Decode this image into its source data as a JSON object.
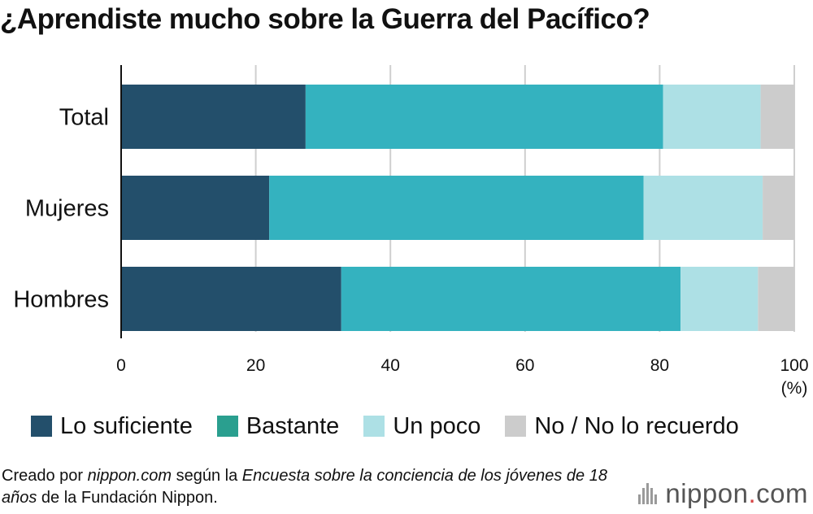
{
  "title": "¿Aprendiste mucho sobre la Guerra del Pacífico?",
  "chart_data": {
    "type": "bar",
    "orientation": "horizontal",
    "stacked": true,
    "title": "¿Aprendiste mucho sobre la Guerra del Pacífico?",
    "categories": [
      "Total",
      "Mujeres",
      "Hombres"
    ],
    "series": [
      {
        "name": "Lo suficiente",
        "color": "#234f6b",
        "values": [
          27.4,
          22.0,
          32.7
        ]
      },
      {
        "name": "Bastante",
        "color": "#34b2bf",
        "values": [
          53.1,
          55.6,
          50.4
        ]
      },
      {
        "name": "Un poco",
        "color": "#ade0e5",
        "values": [
          14.5,
          17.7,
          11.5
        ]
      },
      {
        "name": "No / No lo recuerdo",
        "color": "#cccccc",
        "values": [
          5.0,
          4.7,
          5.4
        ]
      }
    ],
    "xlim": [
      0,
      100
    ],
    "xticks": [
      0,
      20,
      40,
      60,
      80,
      100
    ],
    "xlabel": "(%)",
    "grid": true
  },
  "legend": [
    {
      "label": "Lo suficiente",
      "color": "#234f6b"
    },
    {
      "label": "Bastante",
      "color": "#2a9f8f"
    },
    {
      "label": "Un poco",
      "color": "#ade0e5"
    },
    {
      "label": "No / No lo recuerdo",
      "color": "#cccccc"
    }
  ],
  "footer": {
    "p1": "Creado por ",
    "p2": "nippon.com",
    "p3": " según la ",
    "p4": "Encuesta sobre la conciencia de los jóvenes de 18 años",
    "p5": " de la Fundación Nippon."
  },
  "logo": {
    "name": "nippon",
    "dot": ".",
    "tld": "com"
  }
}
